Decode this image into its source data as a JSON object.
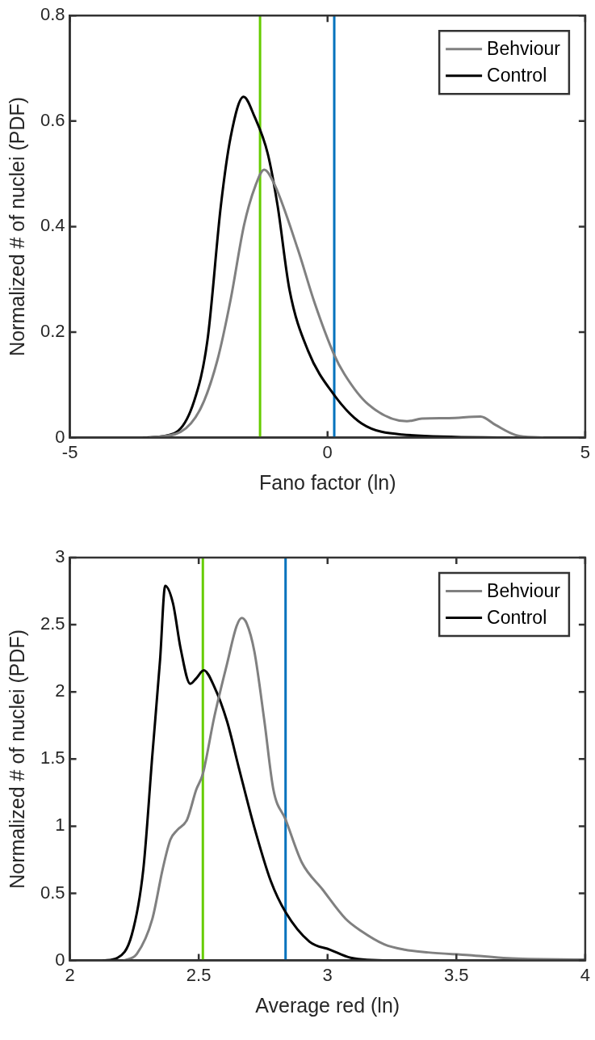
{
  "chart_data": [
    {
      "type": "line",
      "xlabel": "Fano factor (ln)",
      "ylabel": "Normalized # of nuclei (PDF)",
      "xlim": [
        -5,
        5
      ],
      "xticks": [
        -5,
        0,
        5
      ],
      "ylim": [
        0,
        0.8
      ],
      "yticks": [
        0,
        0.2,
        0.4,
        0.6,
        0.8
      ],
      "grid": false,
      "legend": "top right",
      "series": [
        {
          "name": "Behviour",
          "color": "#808080",
          "x": [
            -3.44,
            -2.85,
            -2.46,
            -2.14,
            -1.88,
            -1.62,
            -1.39,
            -1.23,
            -1.03,
            -0.58,
            -0.25,
            0.12,
            0.33,
            0.79,
            1.54,
            1.83,
            2.35,
            2.97,
            3.26,
            3.65,
            4.17
          ],
          "values": [
            0,
            0.011,
            0.056,
            0.146,
            0.262,
            0.403,
            0.48,
            0.508,
            0.48,
            0.358,
            0.255,
            0.159,
            0.12,
            0.063,
            0.031,
            0.036,
            0.037,
            0.04,
            0.024,
            0.005,
            0
          ]
        },
        {
          "name": "Control",
          "color": "#000000",
          "x": [
            -3.57,
            -2.98,
            -2.59,
            -2.33,
            -2.07,
            -1.88,
            -1.63,
            -1.42,
            -1.16,
            -0.97,
            -0.74,
            -0.38,
            0.12,
            0.66,
            1.44,
            3.52
          ],
          "values": [
            0,
            0.008,
            0.069,
            0.185,
            0.44,
            0.57,
            0.646,
            0.609,
            0.538,
            0.44,
            0.281,
            0.165,
            0.082,
            0.027,
            0.006,
            0
          ]
        }
      ],
      "ref_lines": [
        {
          "axis": "x",
          "value": -1.31,
          "color": "#66cc00"
        },
        {
          "axis": "x",
          "value": 0.13,
          "color": "#0072bd"
        }
      ]
    },
    {
      "type": "line",
      "xlabel": "Average red (ln)",
      "ylabel": "Normalized # of nuclei (PDF)",
      "xlim": [
        2,
        4
      ],
      "xticks": [
        2,
        2.5,
        3,
        3.5,
        4
      ],
      "ylim": [
        0,
        3
      ],
      "yticks": [
        0,
        0.5,
        1,
        1.5,
        2,
        2.5,
        3
      ],
      "grid": false,
      "legend": "top right",
      "series": [
        {
          "name": "Behviour",
          "color": "#808080",
          "x": [
            2.21,
            2.26,
            2.32,
            2.36,
            2.39,
            2.416,
            2.455,
            2.49,
            2.516,
            2.56,
            2.61,
            2.647,
            2.667,
            2.686,
            2.716,
            2.755,
            2.79,
            2.837,
            2.9,
            2.98,
            3.07,
            3.13,
            3.22,
            3.3,
            3.39,
            3.55,
            3.7,
            4.0
          ],
          "values": [
            0,
            0.05,
            0.31,
            0.68,
            0.9,
            0.97,
            1.05,
            1.27,
            1.39,
            1.81,
            2.21,
            2.49,
            2.55,
            2.51,
            2.3,
            1.78,
            1.27,
            1.05,
            0.73,
            0.53,
            0.31,
            0.22,
            0.12,
            0.08,
            0.06,
            0.04,
            0.017,
            0.006
          ]
        },
        {
          "name": "Control",
          "color": "#000000",
          "x": [
            2.13,
            2.185,
            2.24,
            2.285,
            2.32,
            2.35,
            2.37,
            2.4,
            2.43,
            2.467,
            2.49,
            2.52,
            2.56,
            2.61,
            2.655,
            2.716,
            2.78,
            2.837,
            2.93,
            3.01,
            3.09,
            3.24,
            3.43
          ],
          "values": [
            0,
            0.02,
            0.19,
            0.68,
            1.53,
            2.24,
            2.79,
            2.66,
            2.32,
            2.06,
            2.1,
            2.16,
            2.04,
            1.78,
            1.44,
            0.99,
            0.59,
            0.36,
            0.14,
            0.08,
            0.02,
            0,
            0
          ]
        }
      ],
      "ref_lines": [
        {
          "axis": "x",
          "value": 2.516,
          "color": "#66cc00"
        },
        {
          "axis": "x",
          "value": 2.837,
          "color": "#0072bd"
        }
      ]
    }
  ]
}
